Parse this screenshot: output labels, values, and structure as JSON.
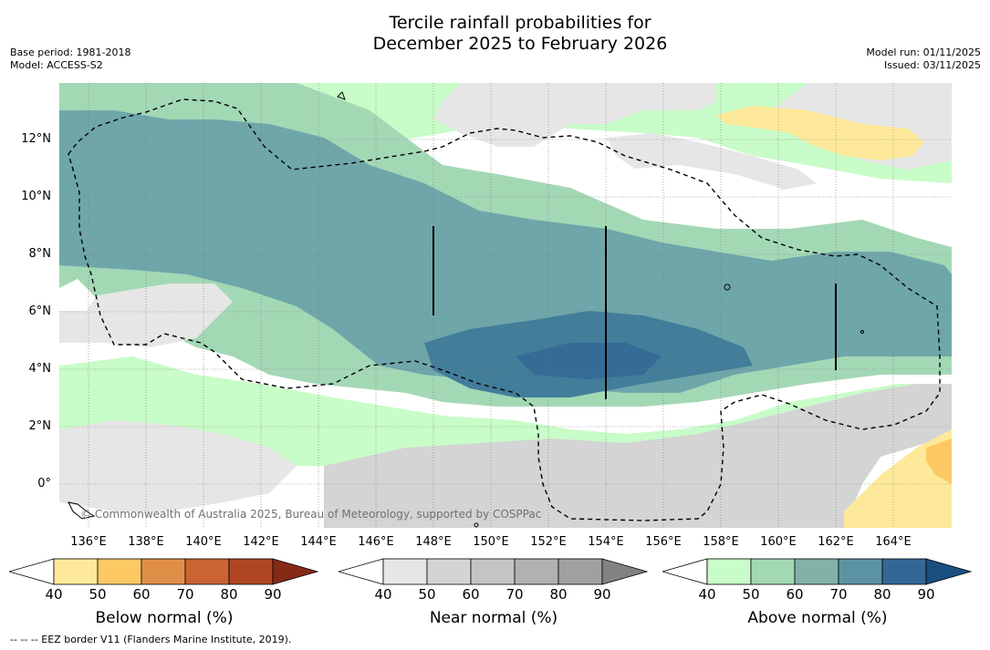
{
  "title": {
    "line1": "Tercile rainfall probabilities for",
    "line2": "December 2025 to February 2026"
  },
  "meta_left": {
    "base_period": "Base period: 1981-2018",
    "model": "Model: ACCESS-S2"
  },
  "meta_right": {
    "model_run": "Model run: 01/11/2025",
    "issued": "Issued: 03/11/2025"
  },
  "axes": {
    "lat_labels": [
      "12°N",
      "10°N",
      "8°N",
      "6°N",
      "4°N",
      "2°N",
      "0°"
    ],
    "lon_labels": [
      "136°E",
      "138°E",
      "140°E",
      "142°E",
      "144°E",
      "146°E",
      "148°E",
      "150°E",
      "152°E",
      "154°E",
      "156°E",
      "158°E",
      "160°E",
      "162°E",
      "164°E"
    ]
  },
  "copyright": "© Commonwealth of Australia 2025, Bureau of Meteorology, supported by COSPPac",
  "legends": [
    {
      "label": "Below normal (%)",
      "ticks": [
        "40",
        "50",
        "60",
        "70",
        "80",
        "90"
      ],
      "colors": [
        "#ffffff",
        "#fee99a",
        "#fdc964",
        "#e08f48",
        "#cb6333",
        "#ae4624",
        "#862a18"
      ]
    },
    {
      "label": "Near normal (%)",
      "ticks": [
        "40",
        "50",
        "60",
        "70",
        "80",
        "90"
      ],
      "colors": [
        "#ffffff",
        "#e6e6e6",
        "#d4d4d4",
        "#c4c4c4",
        "#b1b1b1",
        "#a0a0a0",
        "#828282"
      ]
    },
    {
      "label": "Above normal (%)",
      "ticks": [
        "40",
        "50",
        "60",
        "70",
        "80",
        "90"
      ],
      "colors": [
        "#ffffff",
        "#c8fcc8",
        "#a3d8b5",
        "#81b1a7",
        "#5c93a3",
        "#336896",
        "#1a4f80"
      ]
    }
  ],
  "eez_note": "--  --  -- EEZ border V11 (Flanders Marine Institute, 2019)."
}
